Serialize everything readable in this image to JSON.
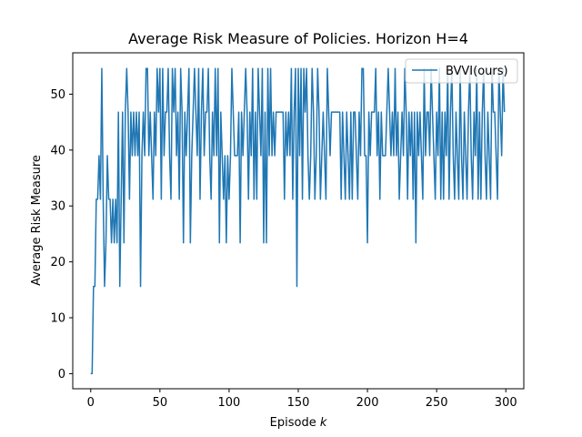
{
  "chart_data": {
    "type": "line",
    "title": "Average Risk Measure of Policies. Horizon H=4",
    "xlabel_text": "Episode ",
    "xlabel_var": "k",
    "ylabel": "Average Risk Measure",
    "xlim": [
      -13,
      313
    ],
    "ylim": [
      -2.7,
      57.4
    ],
    "xticks": [
      0,
      50,
      100,
      150,
      200,
      250,
      300
    ],
    "yticks": [
      0,
      10,
      20,
      30,
      40,
      50
    ],
    "legend_position": "top-right",
    "colors": {
      "series": "#1f77b4"
    },
    "series": [
      {
        "name": "BVVI(ours)",
        "x": [
          0,
          1,
          2,
          3,
          4,
          5,
          6,
          7,
          8,
          9,
          10,
          11,
          12,
          13,
          14,
          15,
          16,
          17,
          18,
          19,
          20,
          21,
          22,
          23,
          24,
          25,
          26,
          27,
          28,
          29,
          30,
          31,
          32,
          33,
          34,
          35,
          36,
          37,
          38,
          39,
          40,
          41,
          42,
          43,
          44,
          45,
          46,
          47,
          48,
          49,
          50,
          51,
          52,
          53,
          54,
          55,
          56,
          57,
          58,
          59,
          60,
          61,
          62,
          63,
          64,
          65,
          66,
          67,
          68,
          69,
          70,
          71,
          72,
          73,
          74,
          75,
          76,
          77,
          78,
          79,
          80,
          81,
          82,
          83,
          84,
          85,
          86,
          87,
          88,
          89,
          90,
          91,
          92,
          93,
          94,
          95,
          96,
          97,
          98,
          99,
          100,
          101,
          102,
          103,
          104,
          105,
          106,
          107,
          108,
          109,
          110,
          111,
          112,
          113,
          114,
          115,
          116,
          117,
          118,
          119,
          120,
          121,
          122,
          123,
          124,
          125,
          126,
          127,
          128,
          129,
          130,
          131,
          132,
          133,
          134,
          135,
          136,
          137,
          138,
          139,
          140,
          141,
          142,
          143,
          144,
          145,
          146,
          147,
          148,
          149,
          150,
          151,
          152,
          153,
          154,
          155,
          156,
          157,
          158,
          159,
          160,
          161,
          162,
          163,
          164,
          165,
          166,
          167,
          168,
          169,
          170,
          171,
          172,
          173,
          174,
          175,
          176,
          177,
          178,
          179,
          180,
          181,
          182,
          183,
          184,
          185,
          186,
          187,
          188,
          189,
          190,
          191,
          192,
          193,
          194,
          195,
          196,
          197,
          198,
          199,
          200,
          201,
          202,
          203,
          204,
          205,
          206,
          207,
          208,
          209,
          210,
          211,
          212,
          213,
          214,
          215,
          216,
          217,
          218,
          219,
          220,
          221,
          222,
          223,
          224,
          225,
          226,
          227,
          228,
          229,
          230,
          231,
          232,
          233,
          234,
          235,
          236,
          237,
          238,
          239,
          240,
          241,
          242,
          243,
          244,
          245,
          246,
          247,
          248,
          249,
          250,
          251,
          252,
          253,
          254,
          255,
          256,
          257,
          258,
          259,
          260,
          261,
          262,
          263,
          264,
          265,
          266,
          267,
          268,
          269,
          270,
          271,
          272,
          273,
          274,
          275,
          276,
          277,
          278,
          279,
          280,
          281,
          282,
          283,
          284,
          285,
          286,
          287,
          288,
          289,
          290,
          291,
          292,
          293,
          294,
          295,
          296,
          297,
          298,
          299
        ],
        "y": [
          0,
          0,
          15.6,
          15.6,
          31.2,
          31.2,
          39,
          31.2,
          54.6,
          31.2,
          15.6,
          23.4,
          39,
          31.2,
          31.2,
          23.4,
          31.2,
          23.4,
          31.2,
          23.4,
          46.8,
          15.6,
          31.2,
          46.8,
          23.4,
          46.8,
          54.6,
          46.8,
          31.2,
          46.8,
          39,
          46.8,
          39,
          46.8,
          39,
          46.8,
          15.6,
          39,
          46.8,
          39,
          54.6,
          54.6,
          39,
          46.8,
          39,
          31.2,
          46.8,
          39,
          54.6,
          46.8,
          54.6,
          31.2,
          54.6,
          39,
          46.8,
          46.8,
          54.6,
          39,
          31.2,
          54.6,
          46.8,
          54.6,
          39,
          46.8,
          31.2,
          54.6,
          46.8,
          23.4,
          46.8,
          39,
          46.8,
          54.6,
          23.4,
          39,
          46.8,
          54.6,
          46.8,
          39,
          54.6,
          31.2,
          46.8,
          54.6,
          39,
          46.8,
          46.8,
          54.6,
          39,
          31.2,
          46.8,
          39,
          54.6,
          39,
          54.6,
          23.4,
          46.8,
          39,
          31.2,
          39,
          23.4,
          39,
          31.2,
          39,
          54.6,
          46.8,
          39,
          39,
          39,
          46.8,
          23.4,
          46.8,
          39,
          46.8,
          54.6,
          46.8,
          31.2,
          46.8,
          39,
          54.6,
          31.2,
          46.8,
          31.2,
          54.6,
          46.8,
          39,
          54.6,
          23.4,
          46.8,
          23.4,
          54.6,
          39,
          54.6,
          39,
          46.8,
          39,
          46.8,
          46.8,
          46.8,
          46.8,
          46.8,
          46.8,
          31.2,
          46.8,
          39,
          46.8,
          39,
          54.6,
          31.2,
          46.8,
          54.6,
          15.6,
          54.6,
          39,
          54.6,
          31.2,
          54.6,
          46.8,
          54.6,
          39,
          31.2,
          39,
          54.6,
          46.8,
          31.2,
          39,
          54.6,
          46.8,
          31.2,
          39,
          46.8,
          39,
          31.2,
          54.6,
          46.8,
          39,
          46.8,
          46.8,
          46.8,
          46.8,
          46.8,
          46.8,
          46.8,
          31.2,
          46.8,
          39,
          31.2,
          46.8,
          39,
          31.2,
          46.8,
          31.2,
          46.8,
          46.8,
          39,
          31.2,
          46.8,
          39,
          54.6,
          54.6,
          39,
          39,
          23.4,
          46.8,
          39,
          46.8,
          46.8,
          46.8,
          54.6,
          39,
          46.8,
          31.2,
          46.8,
          39,
          39,
          39,
          46.8,
          54.6,
          46.8,
          39,
          46.8,
          39,
          54.6,
          39,
          46.8,
          31.2,
          39,
          46.8,
          39,
          54.6,
          46.8,
          31.2,
          46.8,
          39,
          46.8,
          31.2,
          46.8,
          23.4,
          46.8,
          39,
          46.8,
          39,
          31.2,
          54.6,
          39,
          46.8,
          46.8,
          39,
          54.6,
          46.8,
          39,
          31.2,
          46.8,
          39,
          54.6,
          31.2,
          46.8,
          31.2,
          46.8,
          39,
          54.6,
          31.2,
          46.8,
          54.6,
          39,
          31.2,
          46.8,
          39,
          31.2,
          54.6,
          39,
          31.2,
          46.8,
          39,
          31.2,
          46.8,
          54.6,
          39,
          31.2,
          46.8,
          39,
          54.6,
          31.2,
          46.8,
          31.2,
          46.8,
          54.6,
          39,
          31.2,
          46.8,
          39,
          31.2,
          54.6,
          46.8,
          46.8,
          39,
          31.2,
          54.6,
          46.8,
          39,
          54.6,
          46.8
        ]
      }
    ]
  }
}
